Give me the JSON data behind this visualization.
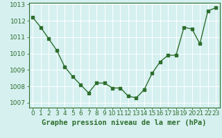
{
  "x": [
    0,
    1,
    2,
    3,
    4,
    5,
    6,
    7,
    8,
    9,
    10,
    11,
    12,
    13,
    14,
    15,
    16,
    17,
    18,
    19,
    20,
    21,
    22,
    23
  ],
  "y": [
    1012.2,
    1011.6,
    1010.9,
    1010.2,
    1009.2,
    1008.6,
    1008.1,
    1007.6,
    1008.2,
    1008.2,
    1007.9,
    1007.9,
    1007.4,
    1007.3,
    1007.8,
    1008.8,
    1009.5,
    1009.9,
    1009.9,
    1011.6,
    1011.5,
    1010.6,
    1012.6,
    1012.8
  ],
  "ylim": [
    1006.7,
    1013.1
  ],
  "xlim": [
    -0.5,
    23.5
  ],
  "yticks": [
    1007,
    1008,
    1009,
    1010,
    1011,
    1012,
    1013
  ],
  "xtick_labels": [
    "0",
    "1",
    "2",
    "3",
    "4",
    "5",
    "6",
    "7",
    "8",
    "9",
    "10",
    "11",
    "12",
    "13",
    "14",
    "15",
    "16",
    "17",
    "18",
    "19",
    "20",
    "21",
    "22",
    "23"
  ],
  "line_color": "#2d6e2d",
  "marker": "s",
  "marker_size": 2.5,
  "line_width": 1.0,
  "bg_color": "#d6f0f0",
  "grid_color": "#ffffff",
  "xlabel": "Graphe pression niveau de la mer (hPa)",
  "xlabel_fontsize": 7.5,
  "tick_fontsize": 6.5,
  "ytick_fontsize": 6.5
}
